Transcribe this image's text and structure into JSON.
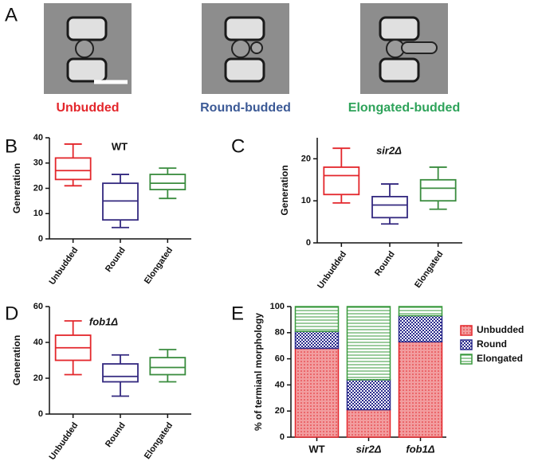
{
  "panel_a": {
    "label": "A",
    "captions": [
      "Unbudded",
      "Round-budded",
      "Elongated-budded"
    ]
  },
  "chart_data": [
    {
      "type": "box",
      "label": "B",
      "title": "WT",
      "y_label": "Generation",
      "categories": [
        "Unbudded",
        "Round",
        "Elongated"
      ],
      "colors": [
        "#e3262b",
        "#33287f",
        "#3a8c3e"
      ],
      "stats": [
        [
          21,
          23.5,
          27,
          32,
          37.5
        ],
        [
          4.5,
          7.5,
          15,
          22,
          25.5
        ],
        [
          16,
          19.5,
          22,
          25.5,
          28
        ]
      ],
      "ylim": [
        0,
        40
      ],
      "yticks": [
        0,
        10,
        20,
        30,
        40
      ]
    },
    {
      "type": "box",
      "label": "C",
      "title": "sir2Δ",
      "y_label": "Generation",
      "categories": [
        "Unbudded",
        "Round",
        "Elongated"
      ],
      "colors": [
        "#e3262b",
        "#33287f",
        "#3a8c3e"
      ],
      "stats": [
        [
          9.5,
          11.5,
          16,
          18,
          22.5
        ],
        [
          4.5,
          6,
          9,
          11,
          14
        ],
        [
          8,
          10,
          13,
          15,
          18
        ]
      ],
      "ylim": [
        0,
        25
      ],
      "yticks": [
        0,
        10,
        20
      ]
    },
    {
      "type": "box",
      "label": "D",
      "title": "fob1Δ",
      "y_label": "Generation",
      "categories": [
        "Unbudded",
        "Round",
        "Elongated"
      ],
      "colors": [
        "#e3262b",
        "#33287f",
        "#3a8c3e"
      ],
      "stats": [
        [
          22,
          30,
          37,
          44,
          52
        ],
        [
          10,
          18,
          21,
          28,
          33
        ],
        [
          18,
          22,
          26,
          31.5,
          36
        ]
      ],
      "ylim": [
        0,
        60
      ],
      "yticks": [
        0,
        20,
        40,
        60
      ]
    },
    {
      "type": "stacked_bar",
      "label": "E",
      "y_label": "% of termianl morphology",
      "categories": [
        "WT",
        "sir2Δ",
        "fob1Δ"
      ],
      "series": [
        {
          "name": "Unbudded",
          "color": "#e3262b",
          "values": [
            68,
            21,
            73
          ]
        },
        {
          "name": "Round",
          "color": "#2a2a8c",
          "values": [
            13,
            23,
            20
          ]
        },
        {
          "name": "Elongated",
          "color": "#3a9a3e",
          "values": [
            19,
            56,
            7
          ]
        }
      ],
      "ylim": [
        0,
        100
      ],
      "yticks": [
        0,
        20,
        40,
        60,
        80,
        100
      ],
      "legend": "right"
    }
  ]
}
